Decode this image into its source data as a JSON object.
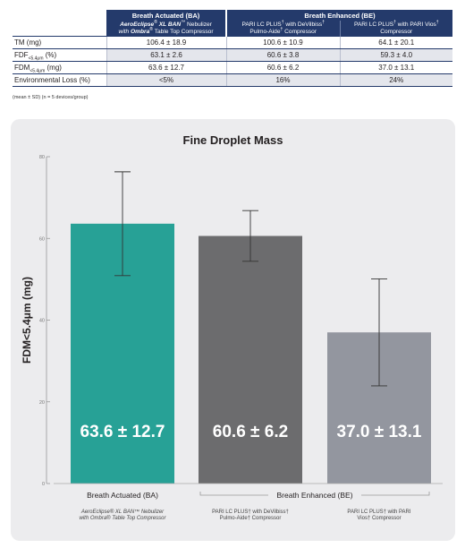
{
  "table": {
    "group_headers": [
      "Breath Actuated (BA)",
      "Breath Enhanced (BE)"
    ],
    "device_ba": {
      "brand": "AeroEclipse",
      "brand_reg": "®",
      "model": "XL BAN",
      "model_tm": "™",
      "rest1": "Nebulizer",
      "with": "with",
      "ombra": "Ombra",
      "ombra_reg": "®",
      "rest2": "Table Top Compressor"
    },
    "device_be1": {
      "line1": "PARI LC PLUS",
      "sup1": "†",
      "line1b": "with DeVilbiss",
      "sup2": "†",
      "line2": "Pulmo-Aide",
      "sup3": "†",
      "line2b": "Compressor"
    },
    "device_be2": {
      "line1": "PARI LC PLUS",
      "sup1": "†",
      "line1b": "with PARI Vios",
      "sup2": "†",
      "line2": "Compressor"
    },
    "rows": [
      {
        "label": "TM (mg)",
        "ba": "106.4 ± 18.9",
        "be1": "100.6 ± 10.9",
        "be2": "64.1 ± 20.1"
      },
      {
        "label": "FDF",
        "label_sub": "<5.4μm",
        "label_unit": "(%)",
        "ba": "63.1 ± 2.6",
        "be1": "60.6 ± 3.8",
        "be2": "59.3 ± 4.0"
      },
      {
        "label": "FDM",
        "label_sub": "<5.4μm",
        "label_unit": "(mg)",
        "ba": "63.6 ± 12.7",
        "be1": "60.6 ± 6.2",
        "be2": "37.0 ± 13.1"
      },
      {
        "label": "Environmental Loss (%)",
        "ba": "<5%",
        "be1": "16%",
        "be2": "24%"
      }
    ],
    "footnote": "(mean ± SD) (n = 5 devices/group)"
  },
  "chart_data": {
    "type": "bar",
    "title": "Fine Droplet Mass",
    "ylabel": "FDM<5.4μm (mg)",
    "ylim": [
      0,
      80
    ],
    "yticks": [
      0,
      20,
      40,
      60,
      80
    ],
    "categories": [
      "AeroEclipse XL BAN Nebulizer with Ombra Table Top Compressor",
      "PARI LC PLUS with DeVilbiss Pulmo-Aide Compressor",
      "PARI LC PLUS with PARI Vios Compressor"
    ],
    "values": [
      63.6,
      60.6,
      37.0
    ],
    "errors": [
      12.7,
      6.2,
      13.1
    ],
    "value_labels": [
      "63.6 ± 12.7",
      "60.6 ± 6.2",
      "37.0 ± 13.1"
    ],
    "colors": [
      "#27a196",
      "#6c6c6e",
      "#93969f"
    ],
    "group_labels": [
      "Breath Actuated (BA)",
      "Breath Enhanced (BE)"
    ],
    "bar_sublabels": [
      [
        "AeroEclipse® XL BAN™ Nebulizer",
        "with Ombra® Table Top Compressor"
      ],
      [
        "PARI LC PLUS† with DeVilbiss†",
        "Pulmo-Aide† Compressor"
      ],
      [
        "PARI LC PLUS† with PARI",
        "Vios† Compressor"
      ]
    ],
    "grid": false,
    "legend": "none"
  }
}
